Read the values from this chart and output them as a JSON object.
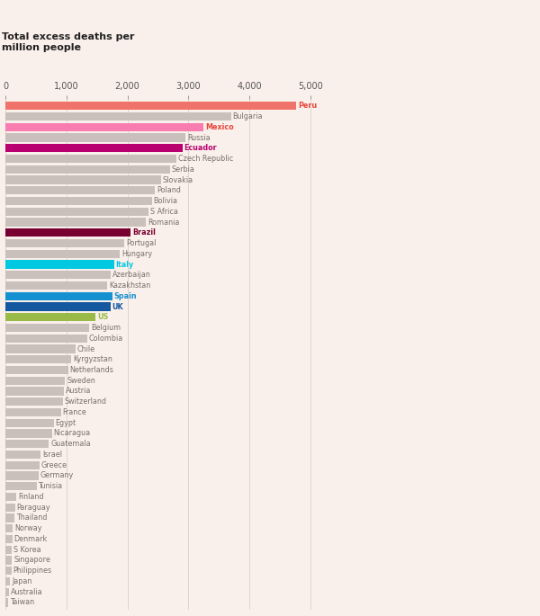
{
  "title": "Total excess deaths per\nmillion people",
  "background_color": "#faf0eb",
  "countries": [
    "Peru",
    "Bulgaria",
    "Mexico",
    "Russia",
    "Ecuador",
    "Czech Republic",
    "Serbia",
    "Slovakia",
    "Poland",
    "Bolivia",
    "S Africa",
    "Romania",
    "Brazil",
    "Portugal",
    "Hungary",
    "Italy",
    "Azerbaijan",
    "Kazakhstan",
    "Spain",
    "UK",
    "US",
    "Belgium",
    "Colombia",
    "Chile",
    "Kyrgyzstan",
    "Netherlands",
    "Sweden",
    "Austria",
    "Switzerland",
    "France",
    "Egypt",
    "Nicaragua",
    "Guatemala",
    "Israel",
    "Greece",
    "Germany",
    "Tunisia",
    "Finland",
    "Paraguay",
    "Thailand",
    "Norway",
    "Denmark",
    "S Korea",
    "Singapore",
    "Philippines",
    "Japan",
    "Australia",
    "Taiwan"
  ],
  "values": [
    4770,
    3700,
    3250,
    2950,
    2900,
    2800,
    2700,
    2550,
    2450,
    2400,
    2350,
    2300,
    2050,
    1950,
    1880,
    1780,
    1720,
    1670,
    1750,
    1720,
    1480,
    1370,
    1340,
    1150,
    1080,
    1030,
    980,
    960,
    940,
    910,
    790,
    760,
    710,
    580,
    560,
    540,
    510,
    175,
    160,
    145,
    125,
    115,
    110,
    105,
    100,
    80,
    65,
    50
  ],
  "colors": [
    "#f0736b",
    "#c9c0bb",
    "#f87cb0",
    "#c9c0bb",
    "#b8006e",
    "#c9c0bb",
    "#c9c0bb",
    "#c9c0bb",
    "#c9c0bb",
    "#c9c0bb",
    "#c9c0bb",
    "#c9c0bb",
    "#780030",
    "#c9c0bb",
    "#c9c0bb",
    "#00c8e0",
    "#c9c0bb",
    "#c9c0bb",
    "#1590d0",
    "#1458a0",
    "#9aba48",
    "#c9c0bb",
    "#c9c0bb",
    "#c9c0bb",
    "#c9c0bb",
    "#c9c0bb",
    "#c9c0bb",
    "#c9c0bb",
    "#c9c0bb",
    "#c9c0bb",
    "#c9c0bb",
    "#c9c0bb",
    "#c9c0bb",
    "#c9c0bb",
    "#c9c0bb",
    "#c9c0bb",
    "#c9c0bb",
    "#c9c0bb",
    "#c9c0bb",
    "#c9c0bb",
    "#c9c0bb",
    "#c9c0bb",
    "#c9c0bb",
    "#c9c0bb",
    "#c9c0bb",
    "#c9c0bb",
    "#c9c0bb",
    "#c9c0bb"
  ],
  "label_colors": {
    "Peru": "#e8443a",
    "Mexico": "#e8443a",
    "Ecuador": "#b8006e",
    "Brazil": "#780030",
    "Italy": "#00c8e0",
    "Spain": "#1590d0",
    "UK": "#1458a0",
    "US": "#9aba48"
  },
  "highlight_countries": [
    "Peru",
    "Mexico",
    "Ecuador",
    "Brazil",
    "Italy",
    "Spain",
    "UK",
    "US"
  ],
  "default_label_color": "#7a6e6a",
  "xlim": [
    0,
    5400
  ],
  "xticks": [
    0,
    1000,
    2000,
    3000,
    4000,
    5000
  ],
  "xtick_labels": [
    "0",
    "1,000",
    "2,000",
    "3,000",
    "4,000",
    "5,000"
  ],
  "bar_height": 0.78,
  "grid_color": "#ddd5ce",
  "label_fontsize": 5.8,
  "tick_fontsize": 7.0
}
